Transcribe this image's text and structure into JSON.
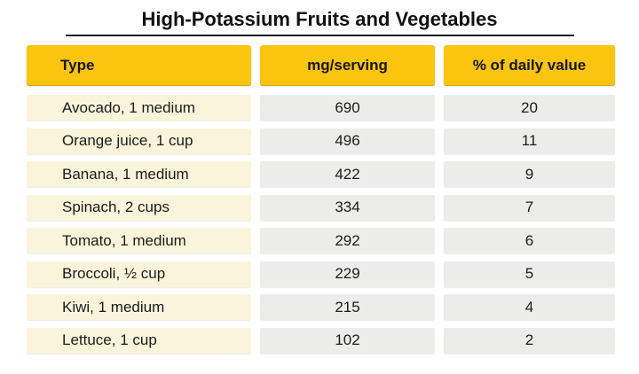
{
  "title": "High-Potassium Fruits and Vegetables",
  "table": {
    "columns": {
      "type": "Type",
      "mg": "mg/serving",
      "dv": "% of daily value"
    },
    "rows": [
      {
        "type": "Avocado, 1 medium",
        "mg": "690",
        "dv": "20"
      },
      {
        "type": "Orange juice, 1 cup",
        "mg": "496",
        "dv": "11"
      },
      {
        "type": "Banana, 1 medium",
        "mg": "422",
        "dv": "9"
      },
      {
        "type": "Spinach, 2 cups",
        "mg": "334",
        "dv": "7"
      },
      {
        "type": "Tomato, 1 medium",
        "mg": "292",
        "dv": "6"
      },
      {
        "type": "Broccoli, ½ cup",
        "mg": "229",
        "dv": "5"
      },
      {
        "type": "Kiwi, 1 medium",
        "mg": "215",
        "dv": "4"
      },
      {
        "type": "Lettuce, 1 cup",
        "mg": "102",
        "dv": "2"
      }
    ]
  },
  "colors": {
    "header_bg": "#FBC40F",
    "header_edge": "#D8A412",
    "label_cell_bg": "#FAF4DB",
    "value_cell_bg": "#ECECEB",
    "text": "#1C1C1C",
    "background": "#FFFFFF"
  },
  "chart_data": {
    "type": "table",
    "title": "High-Potassium Fruits and Vegetables",
    "columns": [
      "Type",
      "mg/serving",
      "% of daily value"
    ],
    "rows": [
      [
        "Avocado, 1 medium",
        690,
        20
      ],
      [
        "Orange juice, 1 cup",
        496,
        11
      ],
      [
        "Banana, 1 medium",
        422,
        9
      ],
      [
        "Spinach, 2 cups",
        334,
        7
      ],
      [
        "Tomato, 1 medium",
        292,
        6
      ],
      [
        "Broccoli, ½ cup",
        229,
        5
      ],
      [
        "Kiwi, 1 medium",
        215,
        4
      ],
      [
        "Lettuce, 1 cup",
        102,
        2
      ]
    ]
  }
}
